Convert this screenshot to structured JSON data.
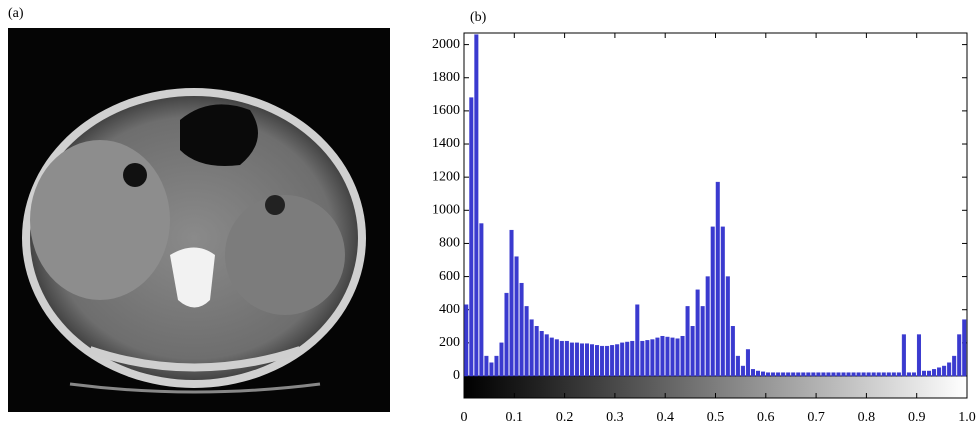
{
  "panel_a": {
    "label": "(a)"
  },
  "chart_data": {
    "type": "histogram",
    "title": "(b)",
    "color": "#3a3acf",
    "bins": [
      0,
      0.01,
      0.02,
      0.03,
      0.04,
      0.05,
      0.06,
      0.07,
      0.08,
      0.09,
      0.1,
      0.11,
      0.12,
      0.13,
      0.14,
      0.15,
      0.16,
      0.17,
      0.18,
      0.19,
      0.2,
      0.21,
      0.22,
      0.23,
      0.24,
      0.25,
      0.26,
      0.27,
      0.28,
      0.29,
      0.3,
      0.31,
      0.32,
      0.33,
      0.34,
      0.35,
      0.36,
      0.37,
      0.38,
      0.39,
      0.4,
      0.41,
      0.42,
      0.43,
      0.44,
      0.45,
      0.46,
      0.47,
      0.48,
      0.49,
      0.5,
      0.51,
      0.52,
      0.53,
      0.54,
      0.55,
      0.56,
      0.57,
      0.58,
      0.59,
      0.6,
      0.61,
      0.62,
      0.63,
      0.64,
      0.65,
      0.66,
      0.67,
      0.68,
      0.69,
      0.7,
      0.71,
      0.72,
      0.73,
      0.74,
      0.75,
      0.76,
      0.77,
      0.78,
      0.79,
      0.8,
      0.81,
      0.82,
      0.83,
      0.84,
      0.85,
      0.86,
      0.87,
      0.88,
      0.89,
      0.9,
      0.91,
      0.92,
      0.93,
      0.94,
      0.95,
      0.96,
      0.97,
      0.98,
      0.99,
      1
    ],
    "values": [
      430,
      1680,
      2060,
      920,
      120,
      80,
      120,
      200,
      500,
      880,
      720,
      560,
      420,
      340,
      300,
      270,
      250,
      230,
      220,
      210,
      210,
      200,
      200,
      195,
      195,
      190,
      185,
      180,
      180,
      185,
      190,
      200,
      205,
      210,
      430,
      210,
      215,
      220,
      230,
      240,
      235,
      230,
      225,
      240,
      420,
      300,
      520,
      420,
      600,
      900,
      1170,
      900,
      600,
      300,
      120,
      60,
      160,
      40,
      30,
      25,
      20,
      20,
      20,
      20,
      20,
      20,
      20,
      20,
      20,
      20,
      20,
      20,
      20,
      20,
      20,
      20,
      20,
      20,
      20,
      20,
      20,
      20,
      20,
      20,
      20,
      20,
      20,
      250,
      20,
      20,
      250,
      30,
      30,
      40,
      50,
      60,
      80,
      120,
      250,
      340
    ],
    "xlim": [
      0,
      1
    ],
    "xticks": [
      0,
      0.1,
      0.2,
      0.3,
      0.4,
      0.5,
      0.6,
      0.7,
      0.8,
      0.9,
      {
        "value": 1,
        "label": "1.0"
      }
    ],
    "ylim": [
      0,
      2070
    ],
    "yticks": [
      0,
      200,
      400,
      600,
      800,
      1000,
      1200,
      1400,
      1600,
      1800,
      2000
    ]
  }
}
